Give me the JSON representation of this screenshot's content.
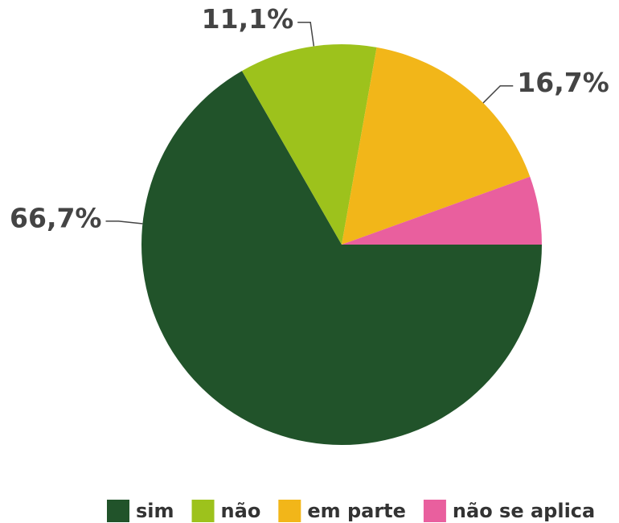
{
  "chart_data": {
    "type": "pie",
    "categories": [
      "sim",
      "não",
      "em parte",
      "não se aplica"
    ],
    "values": [
      66.7,
      11.1,
      16.7,
      5.5
    ],
    "value_labels": [
      "66,7%",
      "11,1%",
      "16,7%",
      null
    ],
    "colors": [
      "#21532a",
      "#9dc21c",
      "#f2b619",
      "#e95f9e"
    ],
    "legend": "bottom"
  }
}
